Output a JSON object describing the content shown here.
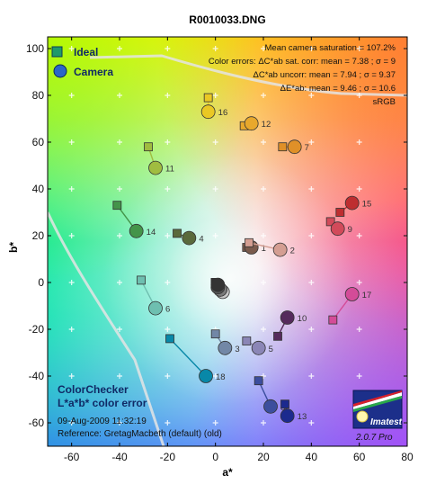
{
  "chart_data": {
    "type": "scatter",
    "title": "R0010033.DNG",
    "xlabel": "a*",
    "ylabel": "b*",
    "xlim": [
      -70,
      80
    ],
    "ylim": [
      -70,
      105
    ],
    "xticks": [
      -60,
      -40,
      -20,
      0,
      20,
      40,
      60,
      80
    ],
    "yticks": [
      -60,
      -40,
      -20,
      0,
      20,
      40,
      60,
      80,
      100
    ],
    "grid": true,
    "legend_position": "top-left",
    "legend": [
      "Ideal",
      "Camera"
    ],
    "stats": [
      "Mean camera saturation = 107.2%",
      "Color errors:  ΔC*ab sat. corr:  mean = 7.38 ;  σ = 9",
      "ΔC*ab uncorr:  mean = 7.94 ;  σ = 9.37",
      "ΔE*ab:  mean = 9.46 ;  σ = 10.6",
      "sRGB"
    ],
    "caption": [
      "ColorChecker",
      "L*a*b* color error"
    ],
    "timestamp": "09-Aug-2009 11:32:19",
    "reference": "Reference: GretagMacbeth (default) (old)",
    "logo_text": "Imatest",
    "version": "2.0.7  Pro",
    "points": [
      {
        "id": "1",
        "ideal": [
          13,
          15
        ],
        "camera": [
          15,
          15
        ],
        "color": "#7a5a4c"
      },
      {
        "id": "2",
        "ideal": [
          14,
          17
        ],
        "camera": [
          27,
          14
        ],
        "color": "#d49e92"
      },
      {
        "id": "3",
        "ideal": [
          0,
          -22
        ],
        "camera": [
          4,
          -28
        ],
        "color": "#7287a6"
      },
      {
        "id": "4",
        "ideal": [
          -16,
          21
        ],
        "camera": [
          -11,
          19
        ],
        "color": "#5a6a3c"
      },
      {
        "id": "5",
        "ideal": [
          13,
          -25
        ],
        "camera": [
          18,
          -28
        ],
        "color": "#8b86b6"
      },
      {
        "id": "6",
        "ideal": [
          -31,
          1
        ],
        "camera": [
          -25,
          -11
        ],
        "color": "#6ebfb0"
      },
      {
        "id": "7",
        "ideal": [
          28,
          58
        ],
        "camera": [
          33,
          58
        ],
        "color": "#e09028"
      },
      {
        "id": "8",
        "ideal": [
          18,
          -42
        ],
        "camera": [
          23,
          -53
        ],
        "color": "#3c4e9e"
      },
      {
        "id": "9",
        "ideal": [
          48,
          26
        ],
        "camera": [
          51,
          23
        ],
        "color": "#d24a5a"
      },
      {
        "id": "10",
        "ideal": [
          26,
          -23
        ],
        "camera": [
          30,
          -15
        ],
        "color": "#552a5c"
      },
      {
        "id": "11",
        "ideal": [
          -28,
          58
        ],
        "camera": [
          -25,
          49
        ],
        "color": "#a0bc40"
      },
      {
        "id": "12",
        "ideal": [
          12,
          67
        ],
        "camera": [
          15,
          68
        ],
        "color": "#e8a82c"
      },
      {
        "id": "13",
        "ideal": [
          29,
          -52
        ],
        "camera": [
          30,
          -57
        ],
        "color": "#1c2a8e"
      },
      {
        "id": "14",
        "ideal": [
          -41,
          33
        ],
        "camera": [
          -33,
          22
        ],
        "color": "#44944a"
      },
      {
        "id": "15",
        "ideal": [
          52,
          30
        ],
        "camera": [
          57,
          34
        ],
        "color": "#be2e30"
      },
      {
        "id": "16",
        "ideal": [
          -3,
          79
        ],
        "camera": [
          -3,
          73
        ],
        "color": "#eac824"
      },
      {
        "id": "17",
        "ideal": [
          49,
          -16
        ],
        "camera": [
          57,
          -5
        ],
        "color": "#d44c98"
      },
      {
        "id": "18",
        "ideal": [
          -19,
          -24
        ],
        "camera": [
          -4,
          -40
        ],
        "color": "#0888a8"
      },
      {
        "id": "19",
        "ideal": [
          0,
          0
        ],
        "camera": [
          1,
          -2
        ],
        "color": "#f4f4f4"
      },
      {
        "id": "20",
        "ideal": [
          0,
          0
        ],
        "camera": [
          3,
          -4
        ],
        "color": "#c8c8c8"
      },
      {
        "id": "21",
        "ideal": [
          0,
          0
        ],
        "camera": [
          2,
          -3
        ],
        "color": "#a0a0a0"
      },
      {
        "id": "22",
        "ideal": [
          0,
          0
        ],
        "camera": [
          2,
          -3
        ],
        "color": "#7a7a7a"
      },
      {
        "id": "23",
        "ideal": [
          0,
          0
        ],
        "camera": [
          1,
          -2
        ],
        "color": "#555555"
      },
      {
        "id": "24",
        "ideal": [
          0,
          0
        ],
        "camera": [
          1,
          -1
        ],
        "color": "#343434"
      }
    ]
  }
}
